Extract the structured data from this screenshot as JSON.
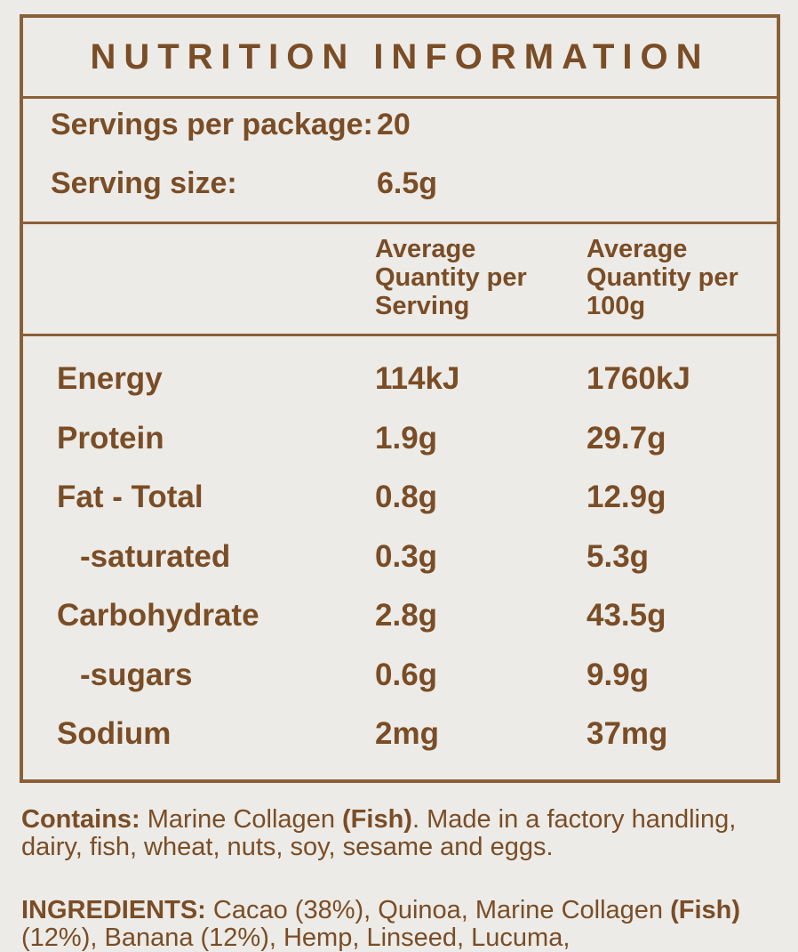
{
  "title": "NUTRITION INFORMATION",
  "servings": {
    "per_package_label": "Servings per package:",
    "per_package_value": "20",
    "size_label": "Serving size:",
    "size_value": "6.5g"
  },
  "columns": {
    "per_serving": "Average Quantity per Serving",
    "per_100g": "Average Quantity per 100g"
  },
  "nutrients": [
    {
      "label": "Energy",
      "per_serving": "114kJ",
      "per_100g": "1760kJ"
    },
    {
      "label": "Protein",
      "per_serving": "1.9g",
      "per_100g": "29.7g"
    },
    {
      "label": "Fat - Total",
      "per_serving": "0.8g",
      "per_100g": "12.9g"
    },
    {
      "label": "-saturated",
      "per_serving": "0.3g",
      "per_100g": "5.3g"
    },
    {
      "label": "Carbohydrate",
      "per_serving": "2.8g",
      "per_100g": "43.5g"
    },
    {
      "label": "-sugars",
      "per_serving": "0.6g",
      "per_100g": "9.9g"
    },
    {
      "label": "Sodium",
      "per_serving": "2mg",
      "per_100g": "37mg"
    }
  ],
  "contains": {
    "label": "Contains:",
    "text_1": " Marine Collagen ",
    "allergen": "(Fish)",
    "text_2": ". Made in a factory handling, dairy, fish, wheat, nuts, soy, sesame and eggs."
  },
  "ingredients": {
    "label": "INGREDIENTS:",
    "text_1": " Cacao (38%), Quinoa, Marine Collagen ",
    "allergen": "(Fish)",
    "text_2": " (12%), Banana (12%), Hemp, Linseed, Lucuma,"
  },
  "colors": {
    "text": "#7a4d26",
    "border": "#8a6038",
    "background": "#ecebe7"
  }
}
